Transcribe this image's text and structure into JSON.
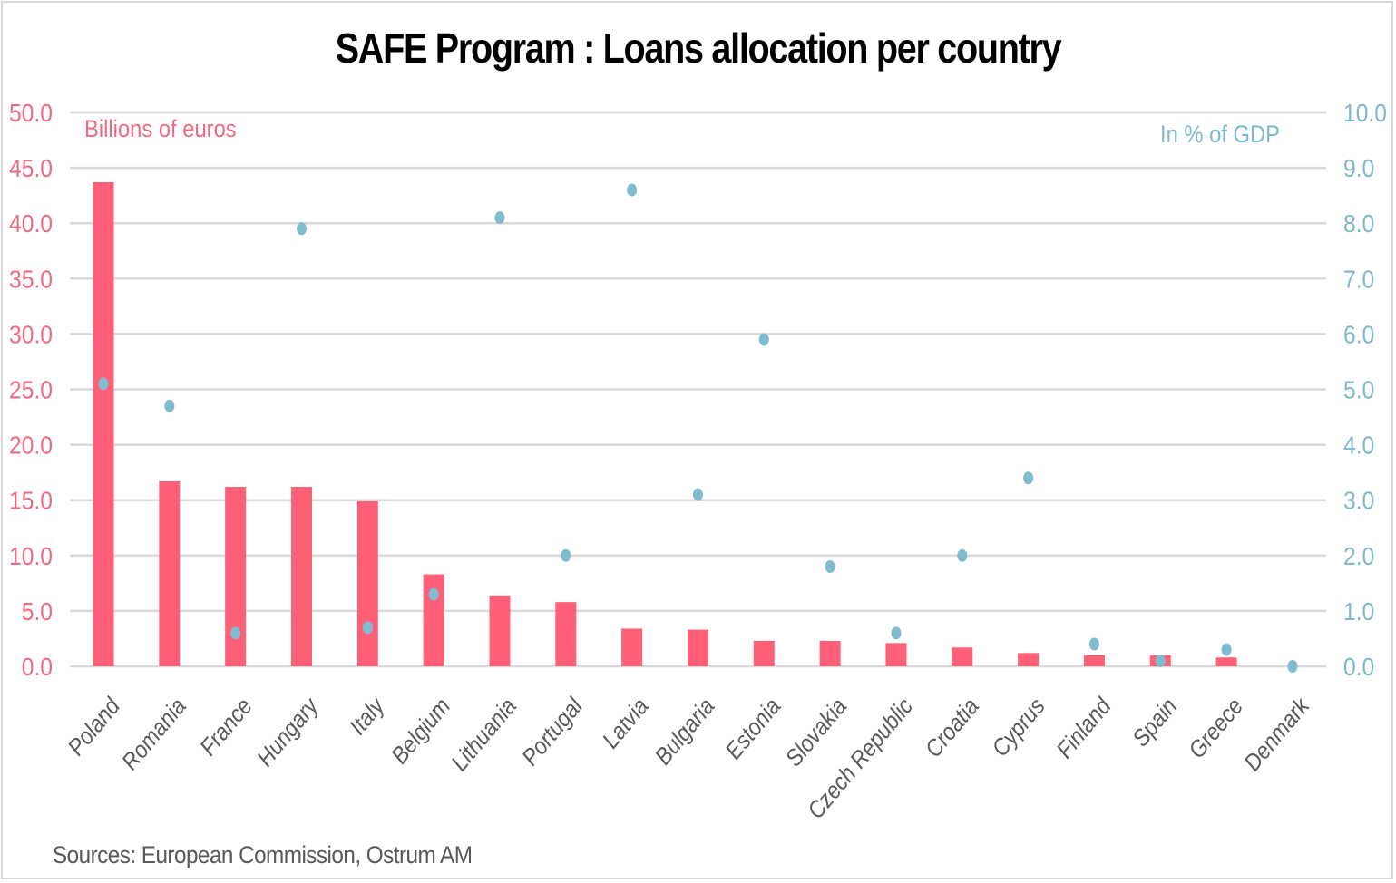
{
  "title": "SAFE Program : Loans allocation per country",
  "source": "Sources: European Commission, Ostrum AM",
  "colors": {
    "bars": "#ff6078",
    "dots": "#7fbcd0",
    "left_axis": "#f06a82",
    "right_axis": "#7fb8cc",
    "grid": "#d9d9d9",
    "category_labels": "#595959"
  },
  "chart_data": {
    "type": "bar",
    "title": "SAFE Program : Loans allocation per country",
    "categories": [
      "Poland",
      "Romania",
      "France",
      "Hungary",
      "Italy",
      "Belgium",
      "Lithuania",
      "Portugal",
      "Latvia",
      "Bulgaria",
      "Estonia",
      "Slovakia",
      "Czech Republic",
      "Croatia",
      "Cyprus",
      "Finland",
      "Spain",
      "Greece",
      "Denmark"
    ],
    "series": [
      {
        "name": "Billions of euros",
        "type": "bar",
        "axis": "left",
        "values": [
          43.7,
          16.7,
          16.2,
          16.2,
          14.9,
          8.3,
          6.4,
          5.8,
          3.4,
          3.3,
          2.3,
          2.3,
          2.1,
          1.7,
          1.2,
          1.0,
          1.0,
          0.8,
          0.0
        ]
      },
      {
        "name": "In % of GDP",
        "type": "scatter",
        "axis": "right",
        "values": [
          5.1,
          4.7,
          0.6,
          7.9,
          0.7,
          1.3,
          8.1,
          2.0,
          8.6,
          3.1,
          5.9,
          1.8,
          0.6,
          2.0,
          3.4,
          0.4,
          0.1,
          0.3,
          0.0
        ]
      }
    ],
    "ylabel": "Billions of euros",
    "ylabel_right": "In % of GDP",
    "ylim": [
      0,
      50
    ],
    "ylim_right": [
      0,
      10
    ],
    "yticks": [
      "0.0",
      "5.0",
      "10.0",
      "15.0",
      "20.0",
      "25.0",
      "30.0",
      "35.0",
      "40.0",
      "45.0",
      "50.0"
    ],
    "yticks_right": [
      "0.0",
      "1.0",
      "2.0",
      "3.0",
      "4.0",
      "5.0",
      "6.0",
      "7.0",
      "8.0",
      "9.0",
      "10.0"
    ],
    "grid": true,
    "xlabel_rotation": -50
  }
}
